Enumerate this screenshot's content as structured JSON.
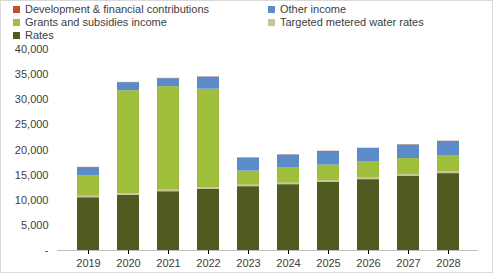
{
  "chart_data": {
    "type": "bar",
    "stacked": true,
    "grid": false,
    "legend": "top",
    "categories": [
      "2019",
      "2020",
      "2021",
      "2022",
      "2023",
      "2024",
      "2025",
      "2026",
      "2027",
      "2028"
    ],
    "series": [
      {
        "name": "Rates",
        "color": "#4f5b21",
        "values": [
          10500,
          11000,
          11700,
          12200,
          12700,
          13100,
          13600,
          14100,
          14800,
          15300
        ]
      },
      {
        "name": "Targeted metered water rates",
        "color": "#c9c29a",
        "values": [
          300,
          300,
          300,
          300,
          300,
          300,
          300,
          300,
          300,
          300
        ]
      },
      {
        "name": "Grants and subsidies income",
        "color": "#9fbe3c",
        "values": [
          4100,
          20500,
          20600,
          19600,
          2800,
          3000,
          3100,
          3200,
          3200,
          3300
        ]
      },
      {
        "name": "Other income",
        "color": "#5b8bc9",
        "values": [
          1600,
          1600,
          1600,
          2400,
          2600,
          2600,
          2700,
          2700,
          2700,
          2800
        ]
      },
      {
        "name": "Development & financial contributions",
        "color": "#c0502a",
        "values": [
          50,
          50,
          50,
          50,
          50,
          50,
          50,
          50,
          50,
          50
        ]
      }
    ],
    "ylim": [
      0,
      40000
    ],
    "yticks": [
      {
        "value": 0,
        "label": "-"
      },
      {
        "value": 5000,
        "label": "5,000"
      },
      {
        "value": 10000,
        "label": "10,000"
      },
      {
        "value": 15000,
        "label": "15,000"
      },
      {
        "value": 20000,
        "label": "20,000"
      },
      {
        "value": 25000,
        "label": "25,000"
      },
      {
        "value": 30000,
        "label": "30,000"
      },
      {
        "value": 35000,
        "label": "35,000"
      },
      {
        "value": 40000,
        "label": "40,000"
      }
    ]
  }
}
